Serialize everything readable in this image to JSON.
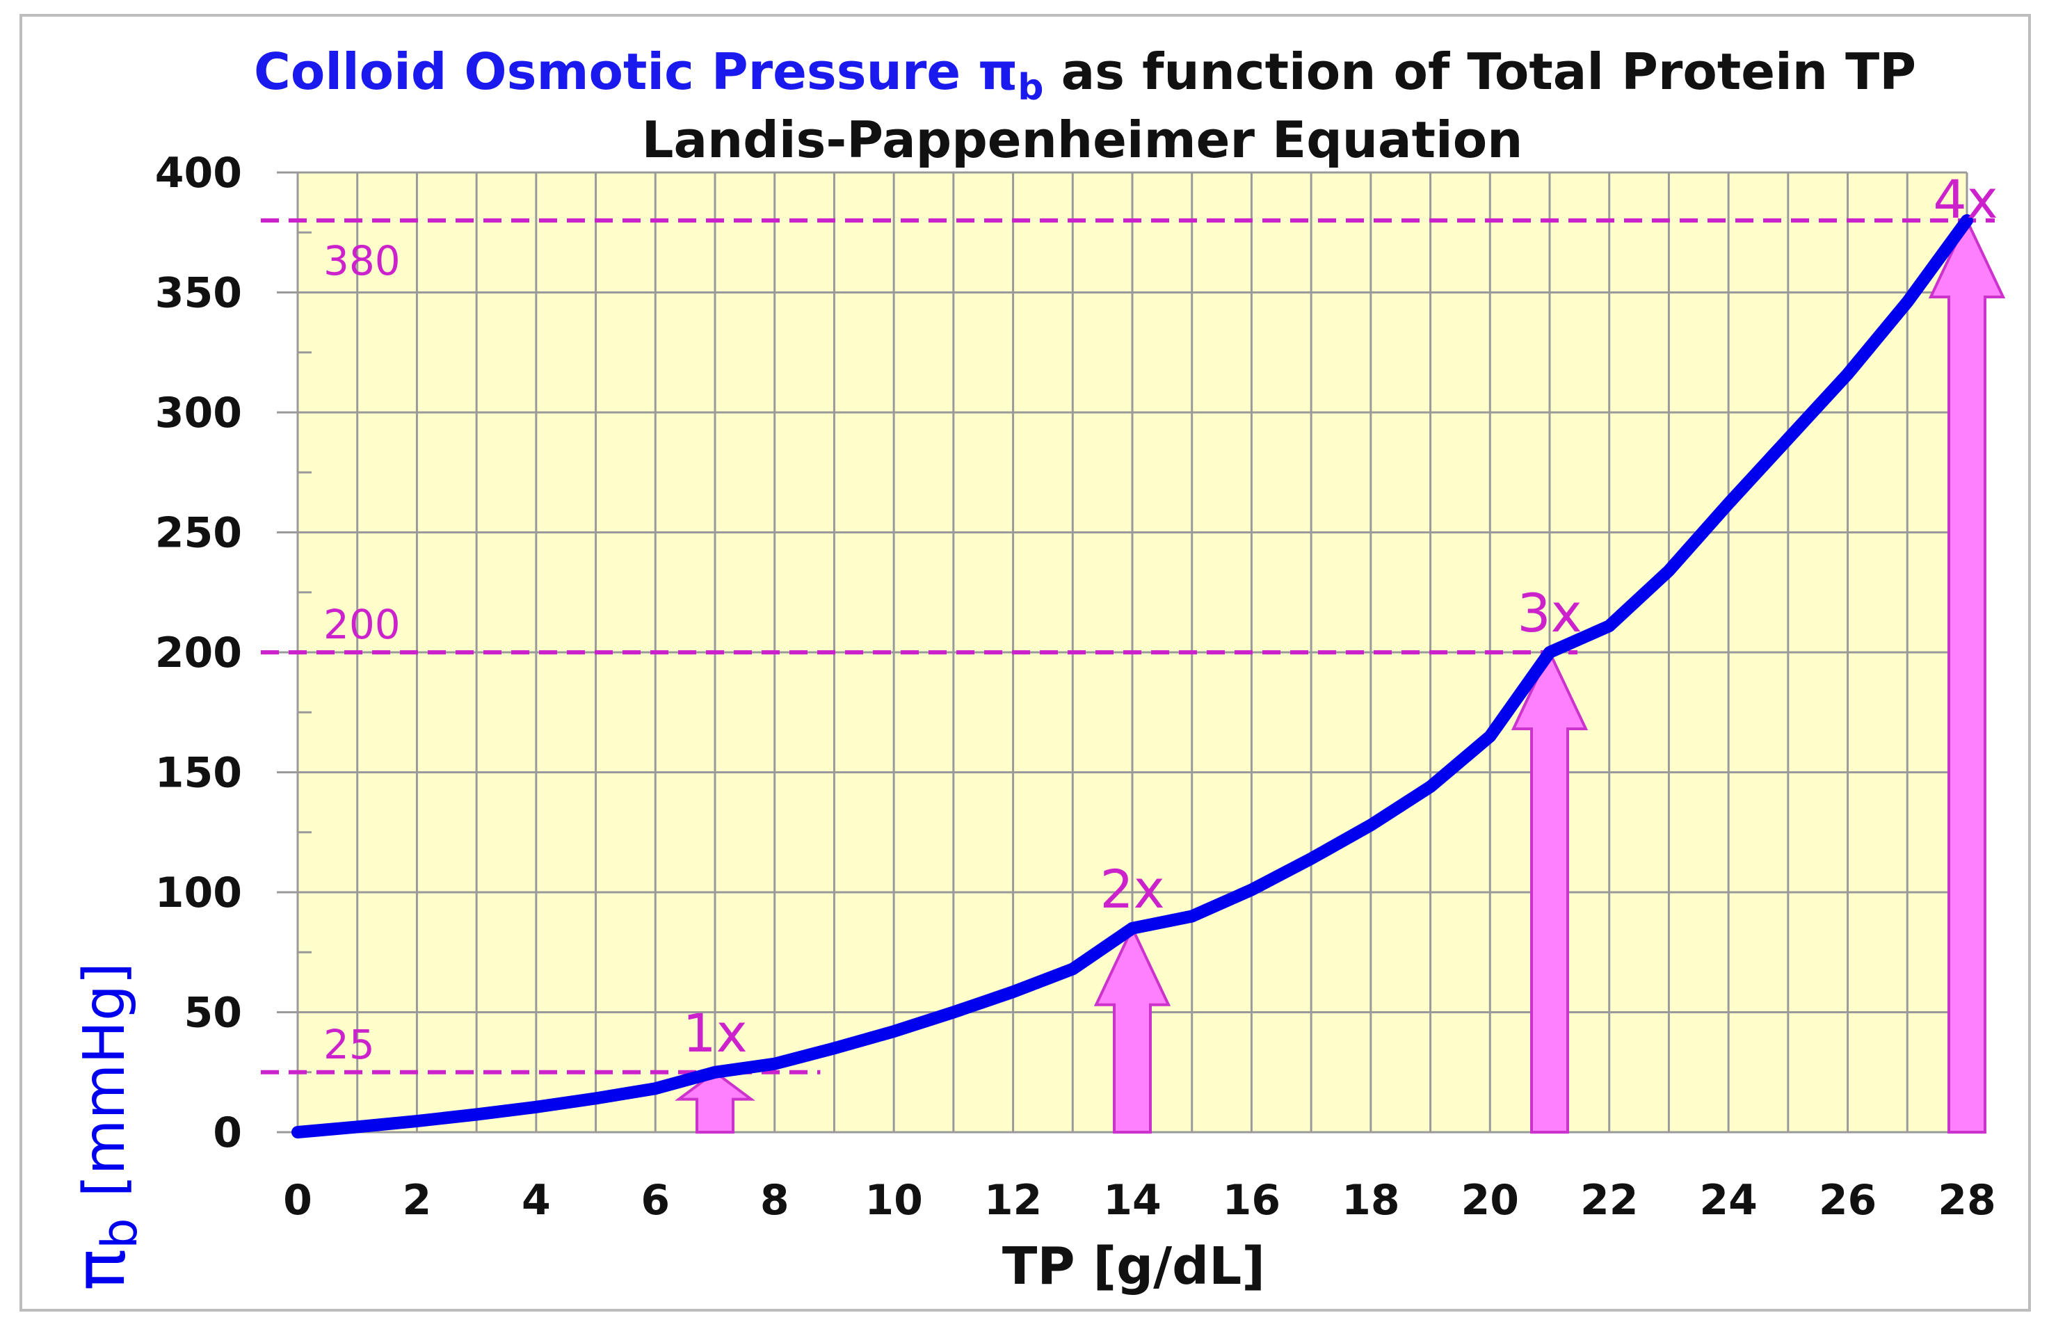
{
  "chart_data": {
    "type": "line",
    "title_part1": "Colloid Osmotic Pressure π",
    "title_part1_sub": "b",
    "title_part2": " as function of Total Protein TP",
    "subtitle": "Landis-Pappenheimer Equation",
    "xlabel": "TP [g/dL]",
    "ylabel_symbol": "π",
    "ylabel_sub": "b",
    "ylabel_unit": "[mmHg]",
    "xlim": [
      0,
      28
    ],
    "ylim": [
      0,
      400
    ],
    "xticks": [
      "0",
      "2",
      "4",
      "6",
      "8",
      "10",
      "12",
      "14",
      "16",
      "18",
      "20",
      "22",
      "24",
      "26",
      "28"
    ],
    "yticks": [
      "0",
      "50",
      "100",
      "150",
      "200",
      "250",
      "300",
      "350",
      "400"
    ],
    "grid": true,
    "series": [
      {
        "x": [
          0,
          1,
          2,
          3,
          4,
          5,
          6,
          7,
          8,
          9,
          10,
          11,
          12,
          13,
          14,
          15,
          16,
          17,
          18,
          19,
          20,
          21,
          22,
          23,
          24,
          25,
          26,
          27,
          28
        ],
        "values": [
          0,
          2.2,
          4.6,
          7.4,
          10.5,
          14.1,
          18.2,
          25,
          28.5,
          35,
          42,
          50,
          58.5,
          68,
          85,
          90,
          101,
          114,
          128,
          144,
          165,
          200,
          211,
          234,
          262,
          289,
          316,
          346,
          380
        ]
      }
    ],
    "reference_lines": [
      {
        "label": "25",
        "y": 25,
        "x_end": 8.3
      },
      {
        "label": "200",
        "y": 200,
        "x_end": 21
      },
      {
        "label": "380",
        "y": 380,
        "x_end": 28
      }
    ],
    "markers": [
      {
        "label": "1x",
        "x": 7,
        "y": 25
      },
      {
        "label": "2x",
        "x": 14,
        "y": 85
      },
      {
        "label": "3x",
        "x": 21,
        "y": 200
      },
      {
        "label": "4x",
        "x": 28,
        "y": 380
      }
    ],
    "colors": {
      "background": "#ffffcc",
      "grid": "#9a9a9a",
      "curve": "#0000ee",
      "title_blue": "#1a1aee",
      "reference": "#cc22cc",
      "arrow_fill": "#ff80ff",
      "arrow_stroke": "#cc33cc"
    }
  }
}
